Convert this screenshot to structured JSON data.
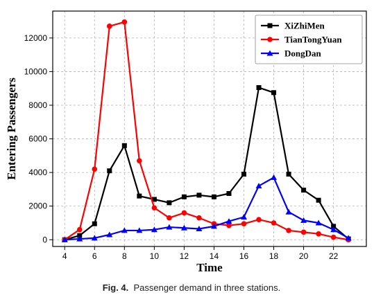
{
  "chart_data": {
    "type": "line",
    "xlabel": "Time",
    "ylabel": "Entering Passengers",
    "xlim": [
      3.2,
      24.2
    ],
    "ylim": [
      -400,
      13600
    ],
    "xticks": [
      4,
      6,
      8,
      10,
      12,
      14,
      16,
      18,
      20,
      22
    ],
    "yticks": [
      0,
      2000,
      4000,
      6000,
      8000,
      10000,
      12000
    ],
    "grid": true,
    "legend_position": "top-right",
    "x": [
      4,
      5,
      6,
      7,
      8,
      9,
      10,
      11,
      12,
      13,
      14,
      15,
      16,
      17,
      18,
      19,
      20,
      21,
      22,
      23
    ],
    "series": [
      {
        "name": "XiZhiMen",
        "color": "#000000",
        "marker": "square",
        "values": [
          0,
          250,
          950,
          4100,
          5600,
          2600,
          2400,
          2200,
          2550,
          2650,
          2550,
          2750,
          3900,
          9050,
          8750,
          3900,
          2950,
          2350,
          800,
          50
        ]
      },
      {
        "name": "TianTongYuan",
        "color": "#ff0000",
        "marker": "circle",
        "values": [
          0,
          600,
          4200,
          12700,
          12950,
          4700,
          1900,
          1300,
          1600,
          1300,
          950,
          850,
          950,
          1200,
          1000,
          550,
          450,
          350,
          150,
          0
        ]
      },
      {
        "name": "DongDan",
        "color": "#0000ff",
        "marker": "triangle",
        "values": [
          0,
          50,
          100,
          300,
          550,
          550,
          600,
          750,
          700,
          650,
          800,
          1100,
          1350,
          3200,
          3700,
          1650,
          1150,
          1000,
          600,
          100
        ]
      }
    ]
  },
  "caption": {
    "label": "Fig. 4.",
    "text": "Passenger demand in three stations."
  }
}
